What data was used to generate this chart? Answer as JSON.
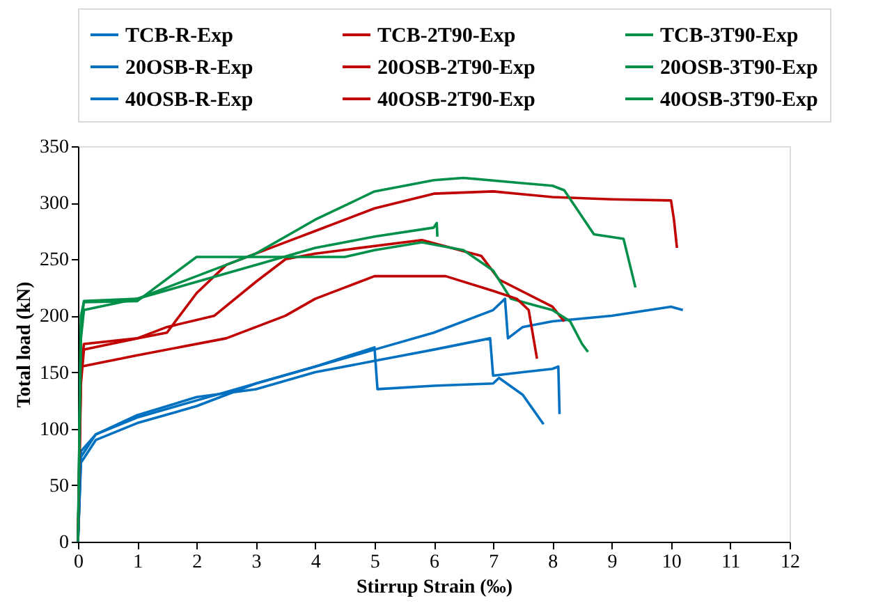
{
  "chart_data": {
    "type": "line",
    "xlabel": "Stirrup Strain (‰)",
    "ylabel": "Total load (kN)",
    "xlim": [
      0,
      12
    ],
    "xticks": [
      0,
      1,
      2,
      3,
      4,
      5,
      6,
      7,
      8,
      9,
      10,
      11,
      12
    ],
    "ylim": [
      0,
      350
    ],
    "yticks": [
      0,
      50,
      100,
      150,
      200,
      250,
      300,
      350
    ],
    "grid": false,
    "legend": "top",
    "marker": "none",
    "line_style": "solid",
    "series": [
      {
        "name": "TCB-R-Exp",
        "color": "#0070c0",
        "x": [
          0,
          0.05,
          0.3,
          1,
          2,
          3,
          4,
          5,
          6,
          7,
          7.2,
          7.25,
          7.5,
          8,
          9,
          10,
          10.2
        ],
        "values": [
          0,
          80,
          95,
          110,
          125,
          140,
          155,
          170,
          185,
          205,
          215,
          180,
          190,
          195,
          200,
          208,
          205
        ]
      },
      {
        "name": "TCB-2T90-Exp",
        "color": "#c00000",
        "x": [
          0,
          0.05,
          0.1,
          1,
          1.5,
          2,
          2.5,
          3,
          3.5,
          4,
          5,
          6,
          7,
          8,
          9,
          10,
          10.05,
          10.1
        ],
        "values": [
          0,
          150,
          175,
          180,
          185,
          220,
          245,
          255,
          265,
          275,
          295,
          308,
          310,
          305,
          303,
          302,
          285,
          260
        ]
      },
      {
        "name": "TCB-3T90-Exp",
        "color": "#00904a",
        "x": [
          0,
          0.05,
          0.1,
          1,
          2,
          3,
          4,
          5,
          6,
          6.5,
          8,
          8.2,
          8.7,
          9.2,
          9.4
        ],
        "values": [
          0,
          190,
          213,
          215,
          235,
          255,
          285,
          310,
          320,
          322,
          315,
          311,
          272,
          268,
          225
        ]
      },
      {
        "name": "20OSB-R-Exp",
        "color": "#0070c0",
        "x": [
          0,
          0.05,
          0.3,
          1,
          2,
          3,
          4,
          5,
          5.05,
          6,
          7,
          7.1,
          7.5,
          7.85
        ],
        "values": [
          0,
          70,
          90,
          105,
          120,
          140,
          155,
          172,
          135,
          138,
          140,
          145,
          130,
          104
        ]
      },
      {
        "name": "20OSB-2T90-Exp",
        "color": "#c00000",
        "x": [
          0,
          0.05,
          0.1,
          1,
          1.5,
          2.3,
          3,
          3.5,
          4,
          4.6,
          5.8,
          6.8,
          7.1,
          8,
          8.2
        ],
        "values": [
          0,
          140,
          170,
          180,
          190,
          200,
          230,
          250,
          255,
          259,
          267,
          253,
          232,
          208,
          195
        ]
      },
      {
        "name": "20OSB-3T90-Exp",
        "color": "#00904a",
        "x": [
          0,
          0.05,
          0.1,
          1,
          2,
          4.5,
          5,
          5.8,
          6.5,
          7,
          7.3,
          8,
          8.3,
          8.5,
          8.6
        ],
        "values": [
          0,
          200,
          212,
          213,
          252,
          252,
          258,
          265,
          258,
          240,
          215,
          205,
          195,
          175,
          168
        ]
      },
      {
        "name": "40OSB-R-Exp",
        "color": "#0070c0",
        "x": [
          0,
          0.05,
          0.3,
          1,
          2,
          3,
          4,
          5,
          6,
          6.95,
          7,
          7.5,
          8,
          8.1,
          8.12
        ],
        "values": [
          0,
          75,
          95,
          112,
          128,
          135,
          150,
          160,
          170,
          180,
          147,
          150,
          153,
          155,
          113
        ]
      },
      {
        "name": "40OSB-2T90-Exp",
        "color": "#c00000",
        "x": [
          0,
          0.05,
          1,
          2.5,
          3.5,
          4,
          4.5,
          5,
          6.2,
          7,
          7.4,
          7.6,
          7.74
        ],
        "values": [
          0,
          155,
          165,
          180,
          200,
          215,
          225,
          235,
          235,
          222,
          215,
          205,
          162
        ]
      },
      {
        "name": "40OSB-3T90-Exp",
        "color": "#00904a",
        "x": [
          0,
          0.05,
          0.1,
          1,
          2,
          3,
          4,
          5,
          6,
          6.05,
          6.06
        ],
        "values": [
          0,
          180,
          205,
          215,
          230,
          245,
          260,
          270,
          278,
          282,
          270
        ]
      }
    ]
  }
}
